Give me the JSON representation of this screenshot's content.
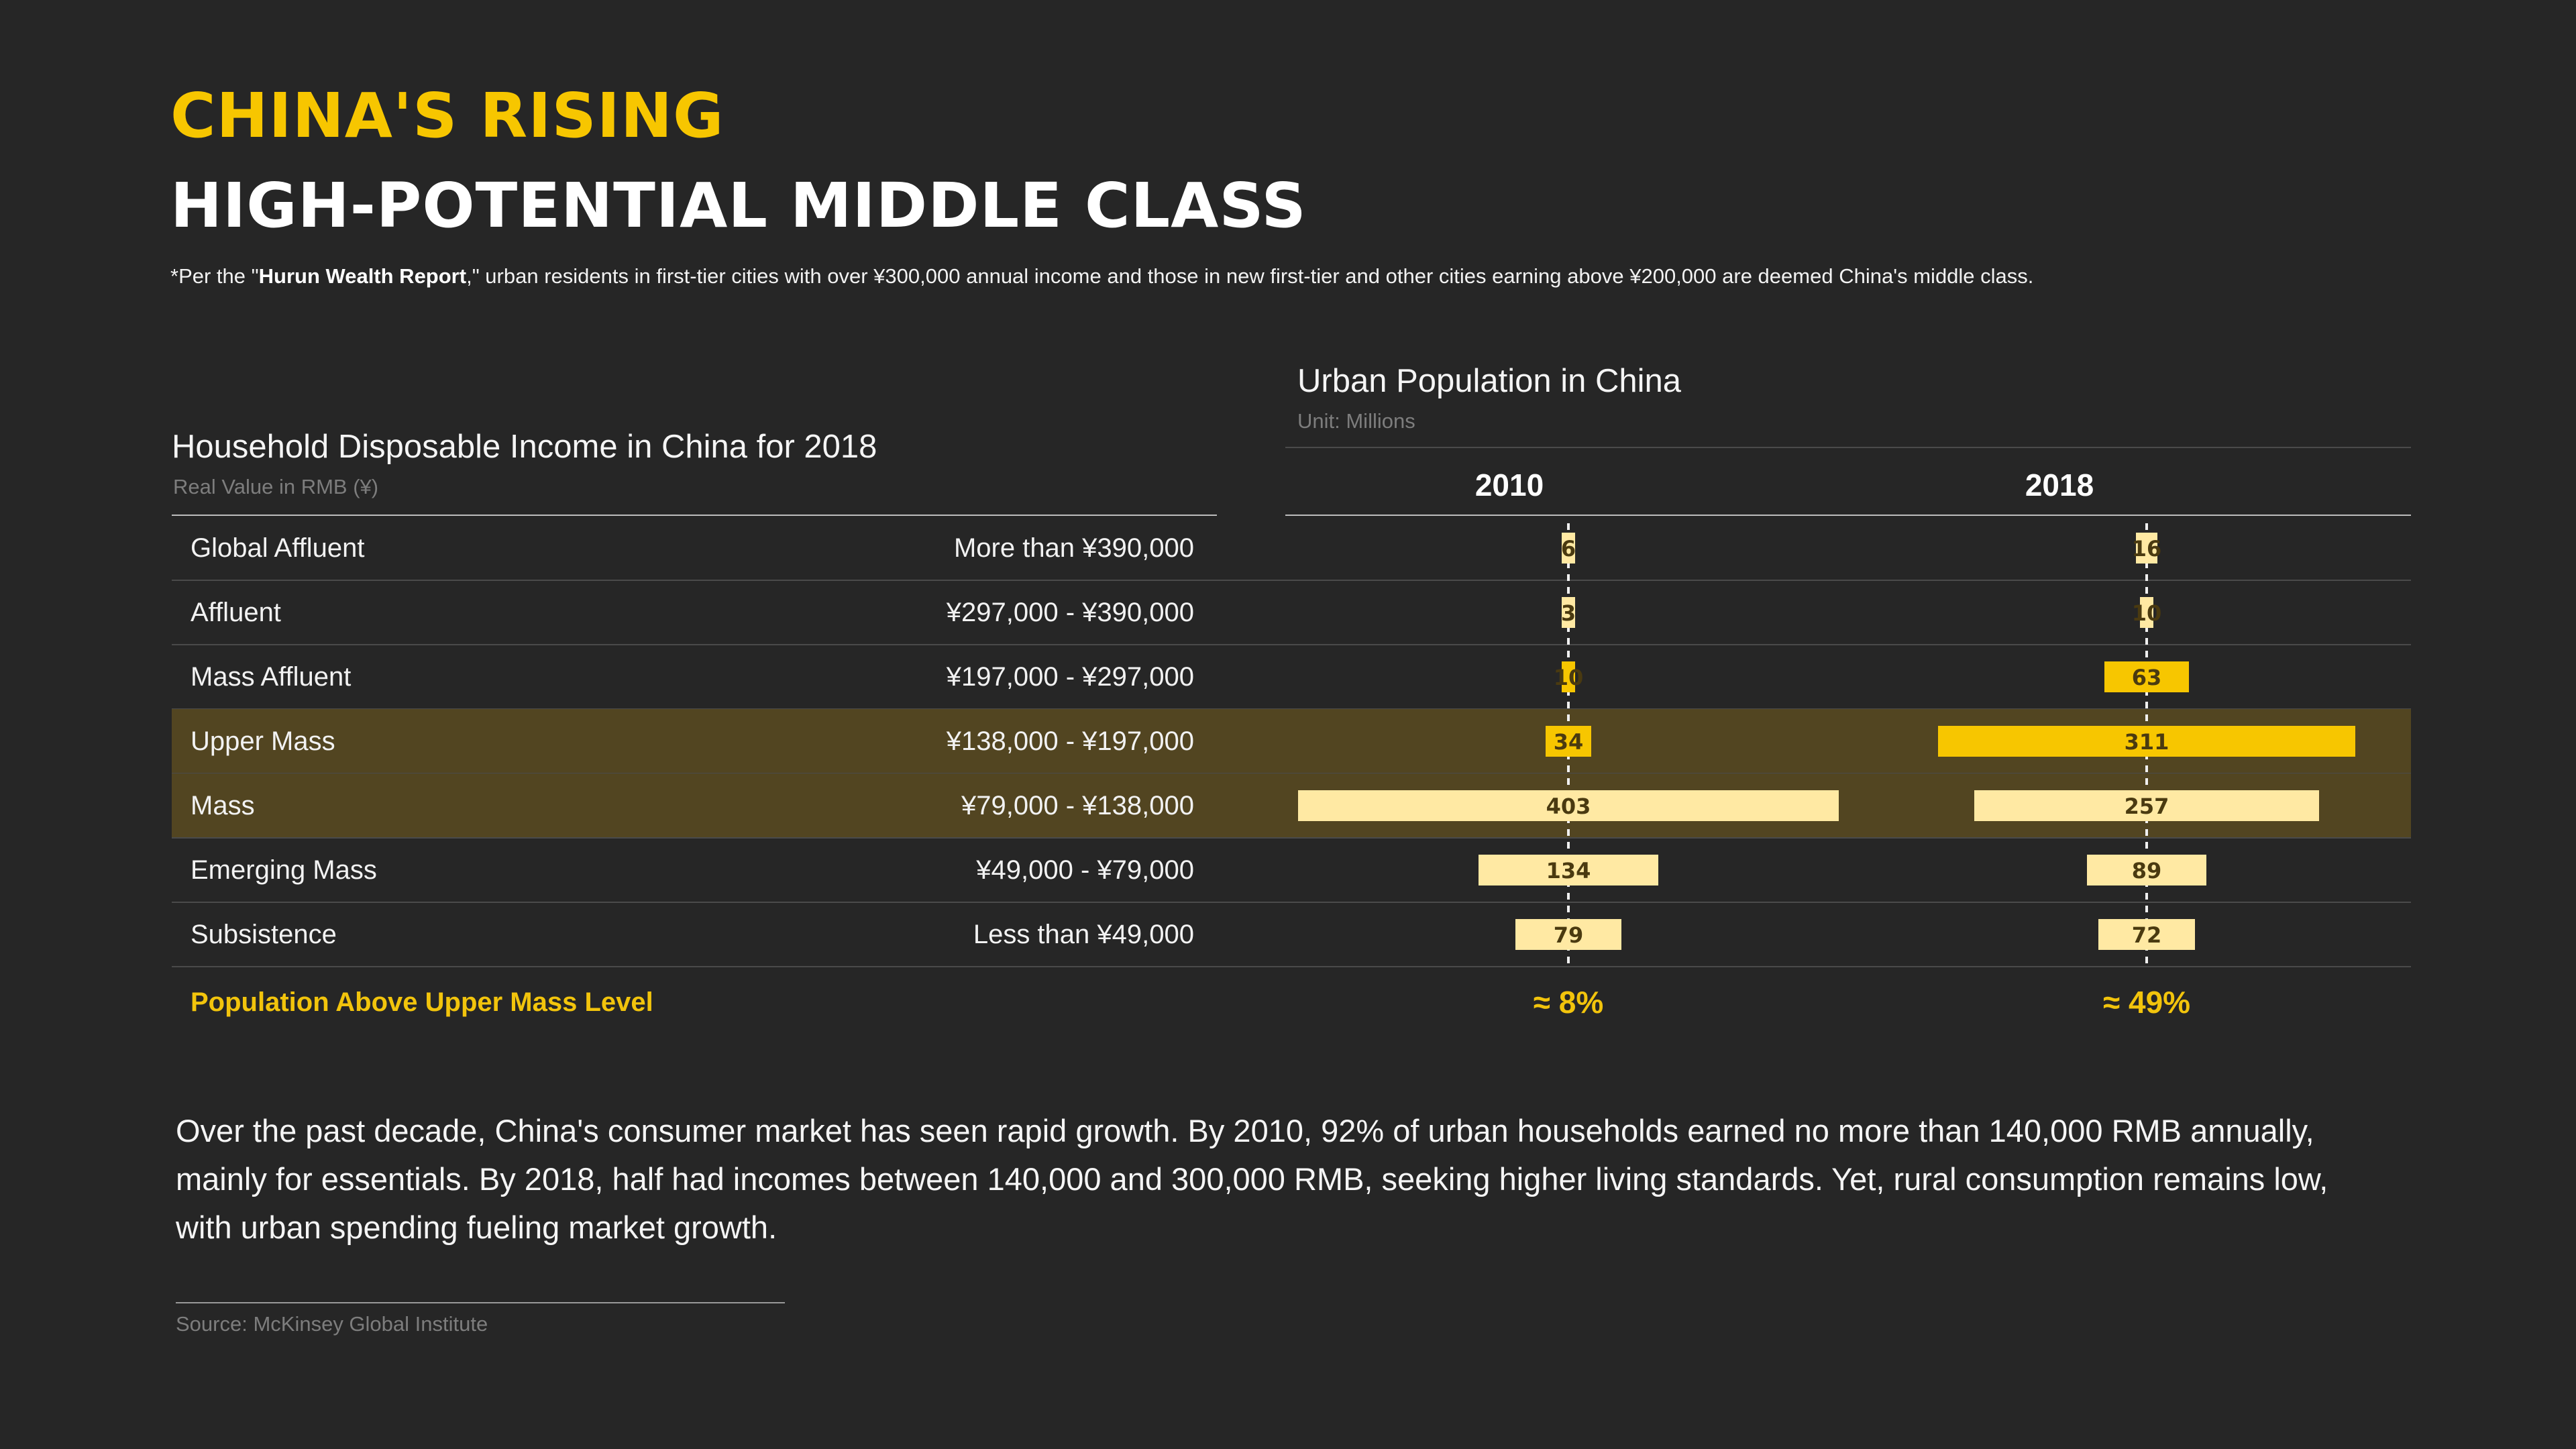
{
  "header": {
    "title_line1": "CHINA'S RISING",
    "title_line2": "HIGH-POTENTIAL MIDDLE CLASS",
    "note_prefix": "*Per the \"",
    "note_bold": "Hurun Wealth Report",
    "note_suffix": ",\" urban residents in first-tier cities with over ¥300,000 annual income and those in new first-tier and other cities earning above ¥200,000 are deemed China's middle class."
  },
  "income_table": {
    "title": "Household Disposable Income in China for 2018",
    "subtitle": "Real Value in RMB (¥)"
  },
  "population_panel": {
    "title": "Urban Population in China",
    "subtitle": "Unit: Millions"
  },
  "chart_data": {
    "type": "bar",
    "title": "Urban Population in China",
    "subtitle": "Unit: Millions",
    "orientation": "horizontal, centered",
    "categories": [
      "Global Affluent",
      "Affluent",
      "Mass Affluent",
      "Upper Mass",
      "Mass",
      "Emerging Mass",
      "Subsistence"
    ],
    "income_ranges": [
      "More than ¥390,000",
      "¥297,000 - ¥390,000",
      "¥197,000 - ¥297,000",
      "¥138,000 - ¥197,000",
      "¥79,000 - ¥138,000",
      "¥49,000 - ¥79,000",
      "Less than ¥49,000"
    ],
    "highlighted": [
      false,
      false,
      false,
      true,
      true,
      false,
      false
    ],
    "series": [
      {
        "name": "2010",
        "values": [
          6,
          3,
          10,
          34,
          403,
          134,
          79
        ]
      },
      {
        "name": "2018",
        "values": [
          16,
          10,
          63,
          311,
          257,
          89,
          72
        ]
      }
    ],
    "bar_colors": [
      "#FFE9A3",
      "#FFE9A3",
      "#F7C600",
      "#F7C600",
      "#FFE9A3",
      "#FFE9A3",
      "#FFE9A3"
    ],
    "summary_label": "Population Above Upper Mass Level",
    "summary_values": [
      "≈ 8%",
      "≈ 49%"
    ]
  },
  "body": {
    "paragraph": "Over the past decade, China's consumer market has seen rapid growth. By 2010, 92% of urban households earned no more than 140,000 RMB annually, mainly for essentials. By 2018, half had incomes between 140,000 and 300,000 RMB, seeking higher living standards. Yet, rural consumption remains low, with urban spending fueling market growth.",
    "source": "Source: McKinsey Global Institute"
  },
  "colors": {
    "background": "#262626",
    "accent": "#F7C600",
    "light_bar": "#FFE9A3",
    "highlight_row": "#524521",
    "bar_text": "#4a3a10"
  }
}
